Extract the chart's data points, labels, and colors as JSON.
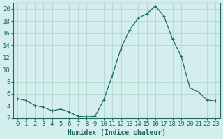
{
  "x": [
    0,
    1,
    2,
    3,
    4,
    5,
    6,
    7,
    8,
    9,
    10,
    11,
    12,
    13,
    14,
    15,
    16,
    17,
    18,
    19,
    20,
    21,
    22,
    23
  ],
  "y": [
    5.2,
    4.9,
    4.1,
    3.8,
    3.2,
    3.5,
    3.0,
    2.3,
    2.2,
    2.3,
    5.0,
    9.0,
    13.5,
    16.5,
    18.5,
    19.2,
    20.5,
    18.8,
    15.0,
    12.2,
    7.0,
    6.3,
    5.0,
    4.8
  ],
  "xlabel": "Humidex (Indice chaleur)",
  "xlim": [
    -0.5,
    23.5
  ],
  "ylim": [
    2,
    21
  ],
  "yticks": [
    2,
    4,
    6,
    8,
    10,
    12,
    14,
    16,
    18,
    20
  ],
  "xticks": [
    0,
    1,
    2,
    3,
    4,
    5,
    6,
    7,
    8,
    9,
    10,
    11,
    12,
    13,
    14,
    15,
    16,
    17,
    18,
    19,
    20,
    21,
    22,
    23
  ],
  "line_color": "#1a6b5a",
  "marker": "+",
  "bg_color": "#d4eeee",
  "grid_color": "#b0d8d0",
  "label_fontsize": 7,
  "tick_fontsize": 6.5
}
